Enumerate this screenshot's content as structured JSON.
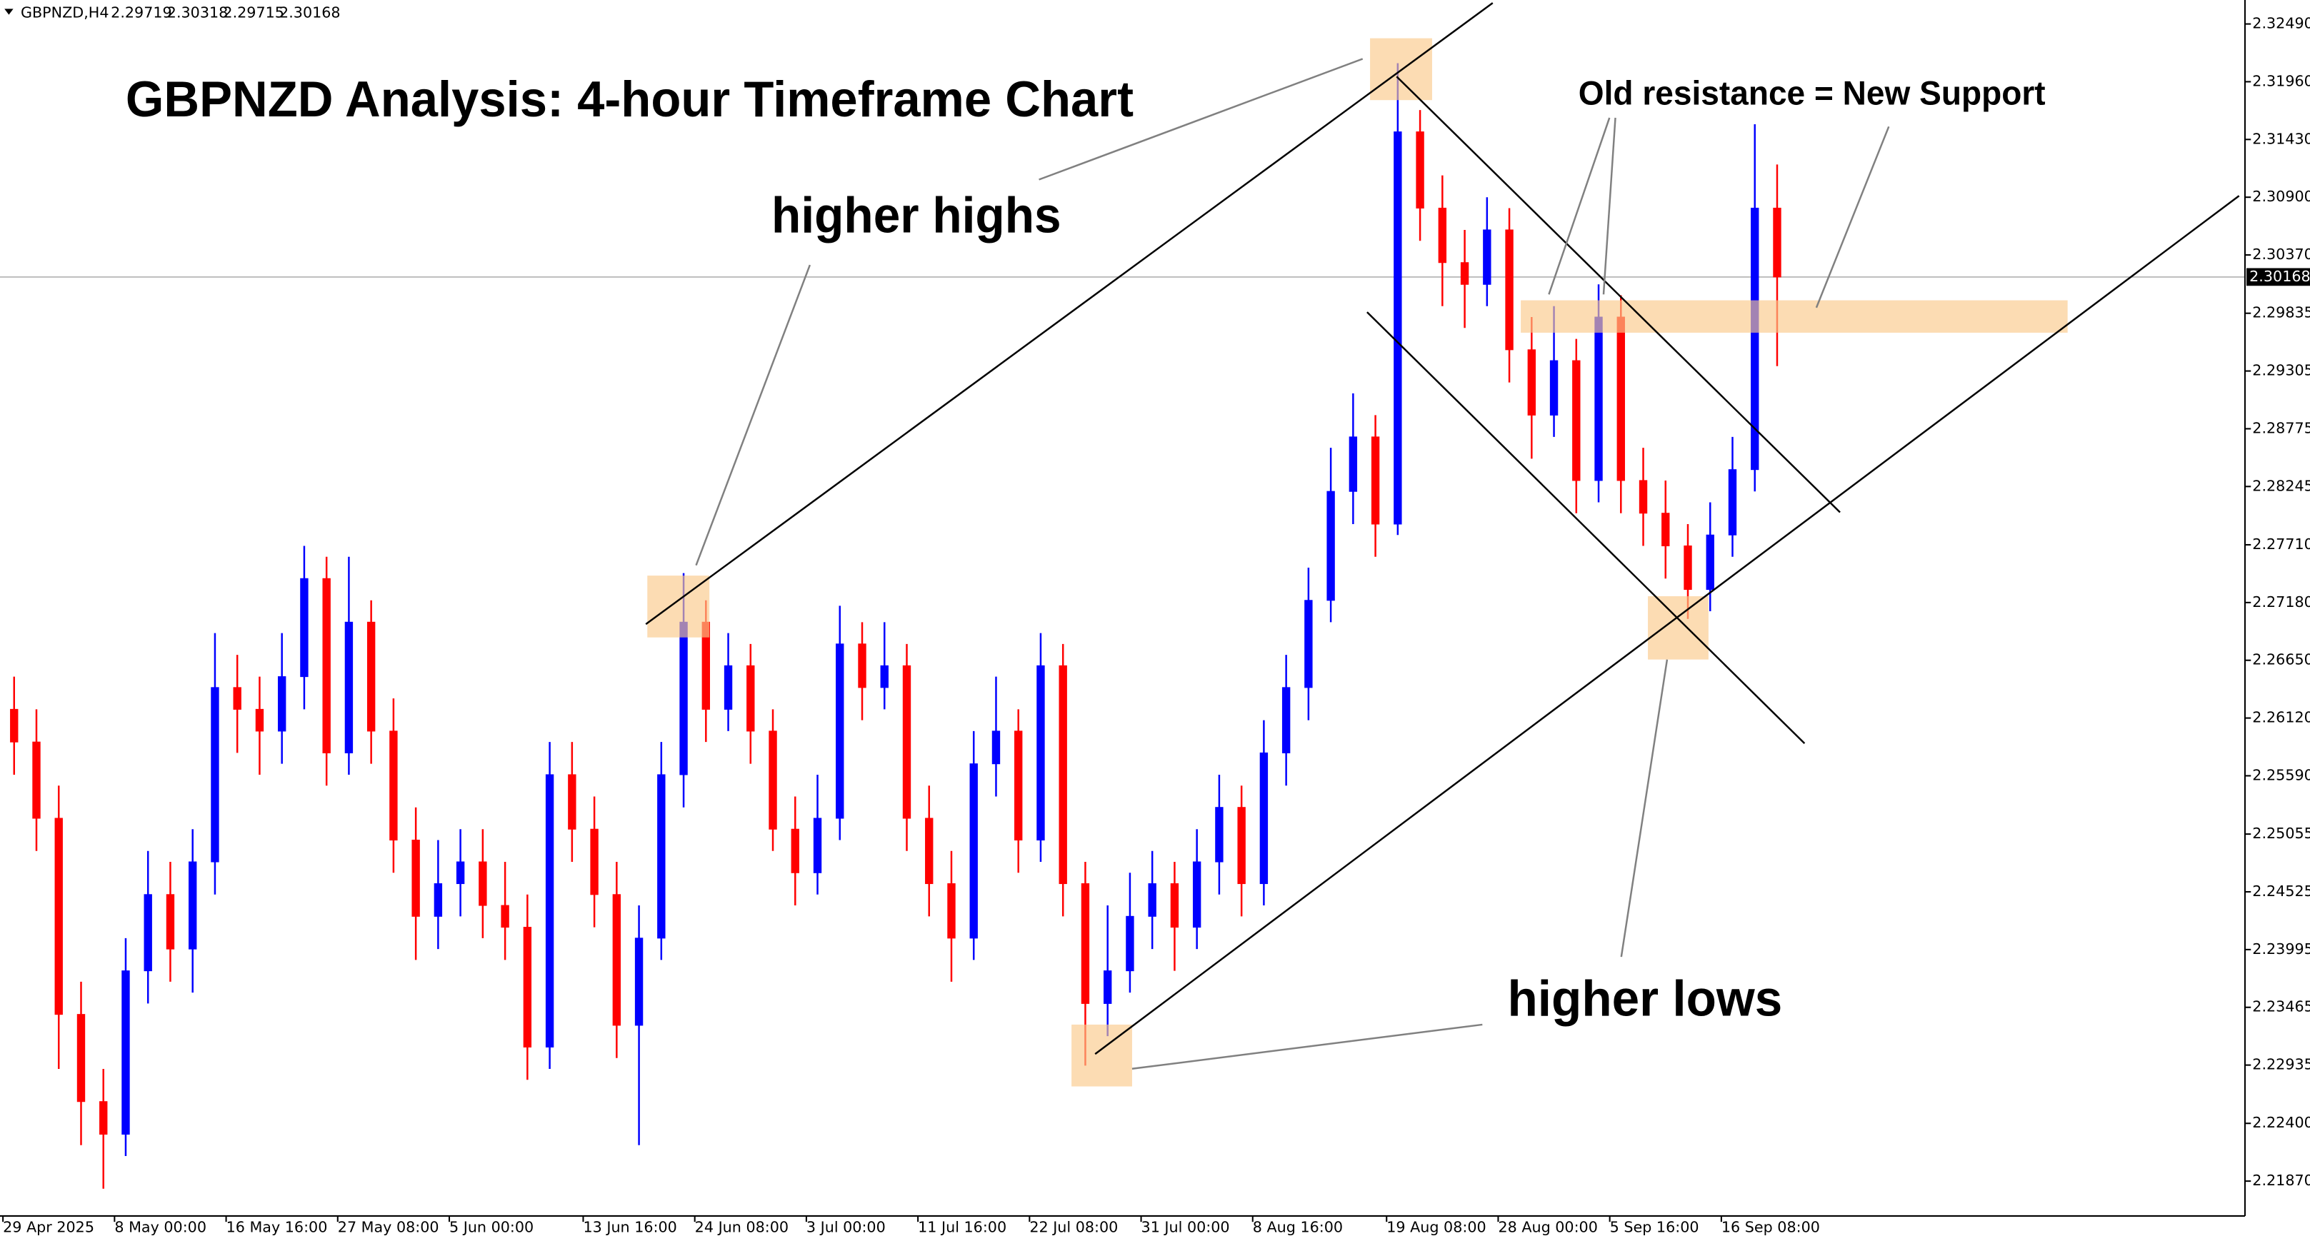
{
  "chart_data": {
    "type": "candlestick",
    "symbol": "GBPNZD,H4",
    "header_ohlc": [
      2.29719,
      2.30318,
      2.29715,
      2.30168
    ],
    "title": "GBPNZD Analysis: 4-hour Timeframe Chart",
    "annotations": {
      "higher_highs": "higher highs",
      "higher_lows": "higher lows",
      "support_note": "Old resistance = New Support"
    },
    "up_color": "#0000ff",
    "down_color": "#ff0000",
    "last_price": 2.30168,
    "grid": false,
    "ylim": [
      2.2155,
      2.3271
    ],
    "yticks": [
      {
        "value": 2.3249,
        "label": "2.32490"
      },
      {
        "value": 2.3196,
        "label": "2.31960"
      },
      {
        "value": 2.3143,
        "label": "2.31430"
      },
      {
        "value": 2.309,
        "label": "2.30900"
      },
      {
        "value": 2.3037,
        "label": "2.30370"
      },
      2.29835,
      2.29305,
      2.28775,
      2.28245,
      {
        "value": 2.2771,
        "label": "2.27710"
      },
      {
        "value": 2.2718,
        "label": "2.27180"
      },
      {
        "value": 2.2665,
        "label": "2.26650"
      },
      {
        "value": 2.2612,
        "label": "2.26120"
      },
      {
        "value": 2.2559,
        "label": "2.25590"
      },
      2.25055,
      2.24525,
      2.23995,
      2.23465,
      2.22935,
      {
        "value": 2.224,
        "label": "2.22400"
      },
      {
        "value": 2.2187,
        "label": "2.21870"
      }
    ],
    "xticks": [
      {
        "value": 0,
        "label": "29 Apr 2025"
      },
      {
        "value": 5,
        "label": "8 May 00:00"
      },
      {
        "value": 10,
        "label": "16 May 16:00"
      },
      {
        "value": 15,
        "label": "27 May 08:00"
      },
      {
        "value": 20,
        "label": "5 Jun 00:00"
      },
      {
        "value": 26,
        "label": "13 Jun 16:00"
      },
      {
        "value": 31,
        "label": "24 Jun 08:00"
      },
      {
        "value": 36,
        "label": "3 Jul 00:00"
      },
      {
        "value": 41,
        "label": "11 Jul 16:00"
      },
      {
        "value": 46,
        "label": "22 Jul 08:00"
      },
      {
        "value": 51,
        "label": "31 Jul 00:00"
      },
      {
        "value": 56,
        "label": "8 Aug 16:00"
      },
      {
        "value": 62,
        "label": "19 Aug 08:00"
      },
      {
        "value": 67,
        "label": "28 Aug 00:00"
      },
      {
        "value": 72,
        "label": "5 Sep 16:00"
      },
      {
        "value": 77,
        "label": "16 Sep 08:00"
      }
    ],
    "open": [
      2.262,
      2.259,
      2.252,
      2.234,
      2.226,
      2.223,
      2.238,
      2.245,
      2.24,
      2.248,
      2.264,
      2.262,
      2.26,
      2.265,
      2.274,
      2.258,
      2.27,
      2.26,
      2.25,
      2.243,
      2.246,
      2.248,
      2.244,
      2.242,
      2.231,
      2.256,
      2.251,
      2.245,
      2.233,
      2.241,
      2.256,
      2.27,
      2.262,
      2.266,
      2.26,
      2.251,
      2.247,
      2.252,
      2.268,
      2.264,
      2.266,
      2.252,
      2.246,
      2.241,
      2.257,
      2.26,
      2.25,
      2.266,
      2.246,
      2.235,
      2.238,
      2.243,
      2.246,
      2.242,
      2.248,
      2.253,
      2.246,
      2.258,
      2.264,
      2.272,
      2.282,
      2.287,
      2.279,
      2.315,
      2.308,
      2.303,
      2.301,
      2.306,
      2.295,
      2.289,
      2.294,
      2.283,
      2.298,
      2.283,
      2.28,
      2.277,
      2.273,
      2.278,
      2.284,
      2.308
    ],
    "high": [
      2.265,
      2.262,
      2.255,
      2.237,
      2.229,
      2.241,
      2.249,
      2.248,
      2.251,
      2.269,
      2.267,
      2.265,
      2.269,
      2.277,
      2.276,
      2.276,
      2.272,
      2.263,
      2.253,
      2.25,
      2.251,
      2.251,
      2.248,
      2.245,
      2.259,
      2.259,
      2.254,
      2.248,
      2.244,
      2.259,
      2.2745,
      2.272,
      2.269,
      2.268,
      2.262,
      2.254,
      2.256,
      2.2715,
      2.27,
      2.27,
      2.268,
      2.255,
      2.249,
      2.26,
      2.265,
      2.262,
      2.269,
      2.268,
      2.248,
      2.244,
      2.247,
      2.249,
      2.248,
      2.251,
      2.256,
      2.255,
      2.261,
      2.267,
      2.275,
      2.286,
      2.291,
      2.289,
      2.3213,
      2.317,
      2.311,
      2.306,
      2.309,
      2.308,
      2.298,
      2.299,
      2.296,
      2.301,
      2.3,
      2.286,
      2.283,
      2.279,
      2.281,
      2.287,
      2.3157,
      2.312
    ],
    "low": [
      2.256,
      2.249,
      2.229,
      2.222,
      2.218,
      2.221,
      2.235,
      2.237,
      2.236,
      2.245,
      2.258,
      2.256,
      2.257,
      2.262,
      2.255,
      2.256,
      2.257,
      2.247,
      2.239,
      2.24,
      2.243,
      2.241,
      2.239,
      2.228,
      2.229,
      2.248,
      2.242,
      2.23,
      2.222,
      2.239,
      2.253,
      2.259,
      2.26,
      2.257,
      2.249,
      2.244,
      2.245,
      2.25,
      2.261,
      2.262,
      2.249,
      2.243,
      2.237,
      2.239,
      2.254,
      2.247,
      2.248,
      2.243,
      2.2293,
      2.232,
      2.236,
      2.24,
      2.238,
      2.24,
      2.245,
      2.243,
      2.244,
      2.255,
      2.261,
      2.27,
      2.279,
      2.276,
      2.278,
      2.305,
      2.299,
      2.297,
      2.299,
      2.292,
      2.285,
      2.287,
      2.28,
      2.281,
      2.28,
      2.277,
      2.274,
      2.2703,
      2.271,
      2.276,
      2.282,
      2.2935
    ],
    "close": [
      2.259,
      2.252,
      2.234,
      2.226,
      2.223,
      2.238,
      2.245,
      2.24,
      2.248,
      2.264,
      2.262,
      2.26,
      2.265,
      2.274,
      2.258,
      2.27,
      2.26,
      2.25,
      2.243,
      2.246,
      2.248,
      2.244,
      2.242,
      2.231,
      2.256,
      2.251,
      2.245,
      2.233,
      2.241,
      2.256,
      2.27,
      2.262,
      2.266,
      2.26,
      2.251,
      2.247,
      2.252,
      2.268,
      2.264,
      2.266,
      2.252,
      2.246,
      2.241,
      2.257,
      2.26,
      2.25,
      2.266,
      2.246,
      2.235,
      2.238,
      2.243,
      2.246,
      2.242,
      2.248,
      2.253,
      2.246,
      2.258,
      2.264,
      2.272,
      2.282,
      2.287,
      2.279,
      2.315,
      2.308,
      2.303,
      2.301,
      2.306,
      2.295,
      2.289,
      2.294,
      2.283,
      2.298,
      2.283,
      2.28,
      2.277,
      2.273,
      2.278,
      2.284,
      2.308,
      2.30168
    ]
  }
}
